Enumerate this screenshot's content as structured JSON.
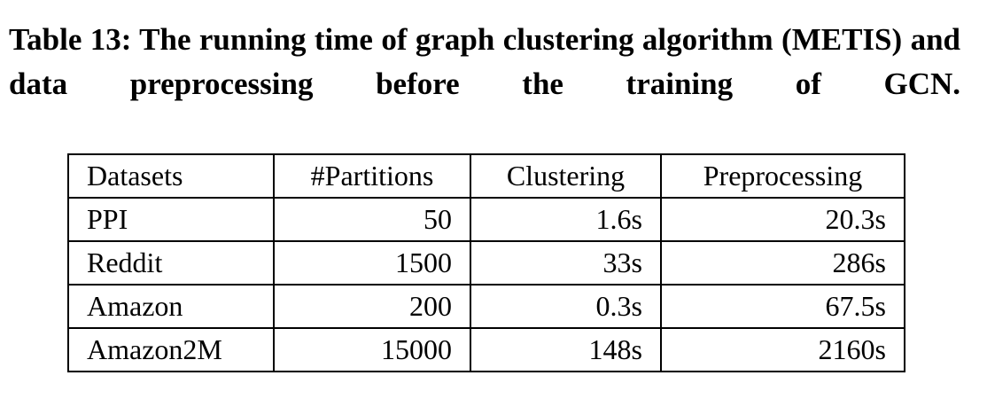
{
  "caption": "Table 13: The running time of graph clustering algorithm (METIS) and data preprocessing before the training of GCN.",
  "table": {
    "header": [
      "Datasets",
      "#Partitions",
      "Clustering",
      "Preprocessing"
    ],
    "rows": [
      [
        "PPI",
        "50",
        "1.6s",
        "20.3s"
      ],
      [
        "Reddit",
        "1500",
        "33s",
        "286s"
      ],
      [
        "Amazon",
        "200",
        "0.3s",
        "67.5s"
      ],
      [
        "Amazon2M",
        "15000",
        "148s",
        "2160s"
      ]
    ]
  }
}
